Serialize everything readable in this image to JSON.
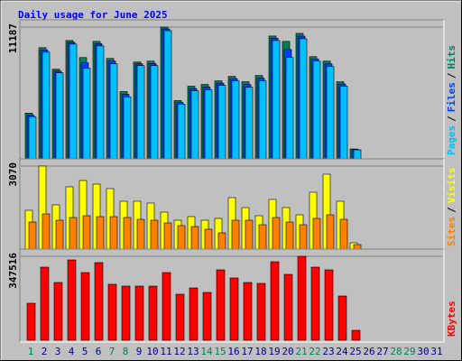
{
  "chart_data": [
    {
      "type": "bar",
      "title": "Daily usage for June 2025",
      "separator": "/",
      "ylim": [
        0,
        11187
      ],
      "yticks": [
        11187
      ],
      "series": [
        {
          "name": "Hits",
          "color": "#00805c",
          "values": [
            3881,
            9437,
            7610,
            10046,
            8600,
            9970,
            8523,
            5708,
            8219,
            8295,
            11187,
            4947,
            6164,
            6317,
            6621,
            7001,
            6545,
            7078,
            10426,
            9970,
            10654,
            8676,
            8295,
            6545,
            837,
            0,
            0,
            0,
            0,
            0,
            0
          ]
        },
        {
          "name": "Files",
          "color": "#0040ff",
          "values": [
            3700,
            9250,
            7450,
            9890,
            8150,
            9780,
            8300,
            5480,
            8070,
            8100,
            11030,
            4790,
            5970,
            6090,
            6430,
            6810,
            6310,
            6850,
            10240,
            9280,
            10420,
            8480,
            8060,
            6350,
            800,
            0,
            0,
            0,
            0,
            0,
            0
          ]
        },
        {
          "name": "Pages",
          "color": "#00c0ff",
          "values": [
            3577,
            9056,
            7306,
            9741,
            7686,
            9589,
            8067,
            5251,
            7915,
            7915,
            10883,
            4642,
            5784,
            5860,
            6240,
            6621,
            6088,
            6621,
            10046,
            8600,
            10198,
            8295,
            7839,
            6164,
            761,
            0,
            0,
            0,
            0,
            0,
            0
          ]
        }
      ]
    },
    {
      "type": "bar",
      "separator": "/",
      "ylim": [
        0,
        3070
      ],
      "yticks": [
        3070
      ],
      "series": [
        {
          "name": "Visits",
          "color": "#ffff00",
          "values": [
            1452,
            3070,
            1651,
            2311,
            2542,
            2410,
            2245,
            1783,
            1783,
            1717,
            1386,
            1089,
            1221,
            1089,
            1155,
            1915,
            1552,
            1254,
            1849,
            1552,
            1287,
            2113,
            2773,
            1783,
            264,
            0,
            0,
            0,
            0,
            0,
            0
          ]
        },
        {
          "name": "Sites",
          "color": "#ff8000",
          "values": [
            1023,
            1320,
            1089,
            1188,
            1254,
            1221,
            1221,
            1188,
            1122,
            1089,
            990,
            891,
            858,
            759,
            627,
            1089,
            1089,
            924,
            1188,
            1023,
            924,
            1155,
            1287,
            1122,
            198,
            0,
            0,
            0,
            0,
            0,
            0
          ]
        }
      ]
    },
    {
      "type": "bar",
      "ylim": [
        0,
        347516
      ],
      "yticks": [
        347516
      ],
      "categories": [
        "1",
        "2",
        "3",
        "4",
        "5",
        "6",
        "7",
        "8",
        "9",
        "10",
        "11",
        "12",
        "13",
        "14",
        "15",
        "16",
        "17",
        "18",
        "19",
        "20",
        "21",
        "22",
        "23",
        "24",
        "25",
        "26",
        "27",
        "28",
        "29",
        "30",
        "31"
      ],
      "category_colors": [
        "#00805c",
        "#000080",
        "#000080",
        "#000080",
        "#000080",
        "#000080",
        "#00805c",
        "#00805c",
        "#000080",
        "#000080",
        "#000080",
        "#000080",
        "#000080",
        "#00805c",
        "#00805c",
        "#000080",
        "#000080",
        "#000080",
        "#000080",
        "#000080",
        "#00805c",
        "#00805c",
        "#000080",
        "#000080",
        "#000080",
        "#000080",
        "#000080",
        "#00805c",
        "#00805c",
        "#000080",
        "#000080"
      ],
      "series": [
        {
          "name": "KBytes",
          "color": "#ff0000",
          "values": [
            153206,
            302676,
            239150,
            332570,
            280255,
            321359,
            231677,
            224204,
            224204,
            224204,
            280255,
            190573,
            216731,
            198045,
            291465,
            257832,
            239150,
            235413,
            325096,
            272779,
            347516,
            302676,
            291465,
            183099,
            41104,
            0,
            0,
            0,
            0,
            0,
            0
          ]
        }
      ]
    }
  ]
}
